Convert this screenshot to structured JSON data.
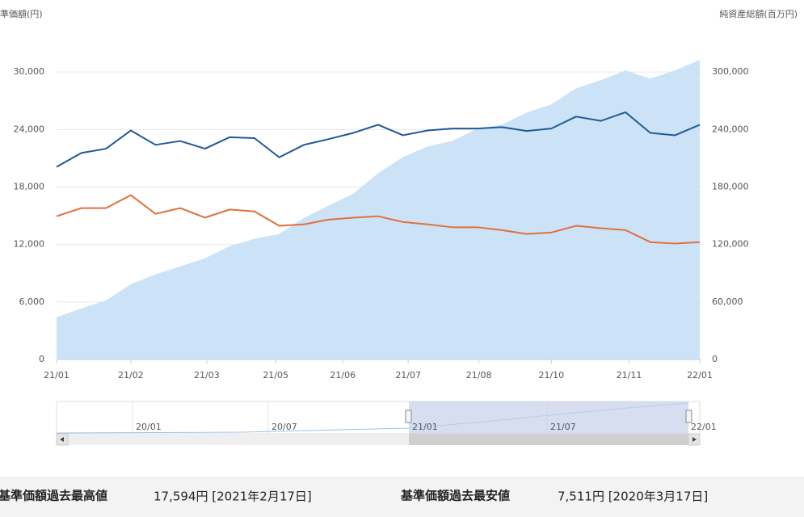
{
  "chart_data": {
    "type": "line",
    "y_label": "準価額(円)",
    "y2_label": "純資産総額(百万円)",
    "x": [
      0,
      14,
      28,
      42,
      56,
      70,
      84,
      98,
      112,
      126,
      140,
      154,
      168,
      182,
      196,
      210,
      224,
      238,
      252,
      266,
      280,
      294,
      308,
      322,
      336,
      350,
      364
    ],
    "xlim": [
      0,
      364
    ],
    "xticks": [
      {
        "value": 0,
        "label": "21/01"
      },
      {
        "value": 42,
        "label": "21/02"
      },
      {
        "value": 85,
        "label": "21/03"
      },
      {
        "value": 124,
        "label": "21/05"
      },
      {
        "value": 162,
        "label": "21/06"
      },
      {
        "value": 199,
        "label": "21/07"
      },
      {
        "value": 239,
        "label": "21/08"
      },
      {
        "value": 280,
        "label": "21/10"
      },
      {
        "value": 324,
        "label": "21/11"
      },
      {
        "value": 364,
        "label": "22/01"
      }
    ],
    "ylim": [
      0,
      36000
    ],
    "yticks": [
      0,
      {
        "value": 6000,
        "label": "6,000"
      },
      {
        "value": 12000,
        "label": "12,000"
      },
      {
        "value": 18000,
        "label": "18,000"
      },
      {
        "value": 24000,
        "label": "24,000"
      },
      {
        "value": 30000,
        "label": "30,000"
      }
    ],
    "y2lim": [
      0,
      360000
    ],
    "y2ticks": [
      0,
      {
        "value": 60000,
        "label": "60,000"
      },
      {
        "value": 120000,
        "label": "120,000"
      },
      {
        "value": 180000,
        "label": "180,000"
      },
      {
        "value": 240000,
        "label": "240,000"
      },
      {
        "value": 300000,
        "label": "300,000"
      }
    ],
    "grid": true,
    "series": [
      {
        "type": "area",
        "axis": "y2",
        "color": "#cce3f7",
        "values": [
          44000,
          53200,
          61700,
          78600,
          88700,
          97200,
          105600,
          118300,
          125900,
          131000,
          147900,
          160600,
          173200,
          194400,
          211300,
          222300,
          228200,
          240800,
          245000,
          257700,
          266200,
          283100,
          291500,
          301700,
          293200,
          301700,
          312700
        ]
      },
      {
        "type": "line",
        "color": "#1f5a96",
        "values": [
          20100,
          21550,
          22000,
          23900,
          22400,
          22800,
          22000,
          23200,
          23100,
          21100,
          22400,
          23000,
          23650,
          24500,
          23400,
          23900,
          24100,
          24100,
          24250,
          23850,
          24100,
          25350,
          24900,
          25800,
          23650,
          23400,
          24500
        ]
      },
      {
        "type": "line",
        "color": "#e0703a",
        "values": [
          14950,
          15800,
          15800,
          17150,
          15200,
          15800,
          14800,
          15650,
          15450,
          13950,
          14100,
          14600,
          14800,
          14950,
          14350,
          14100,
          13800,
          13800,
          13500,
          13100,
          13250,
          13950,
          13700,
          13500,
          12250,
          12100,
          12250
        ]
      }
    ],
    "navigator_labels": [
      "20/01",
      "20/07",
      "21/01",
      "21/07",
      "22/01"
    ]
  },
  "footer": {
    "max_label": "基準価額過去最高値",
    "max_value": "17,594円 [2021年2月17日]",
    "min_label": "基準価額過去最安値",
    "min_value": "7,511円 [2020年3月17日]"
  }
}
